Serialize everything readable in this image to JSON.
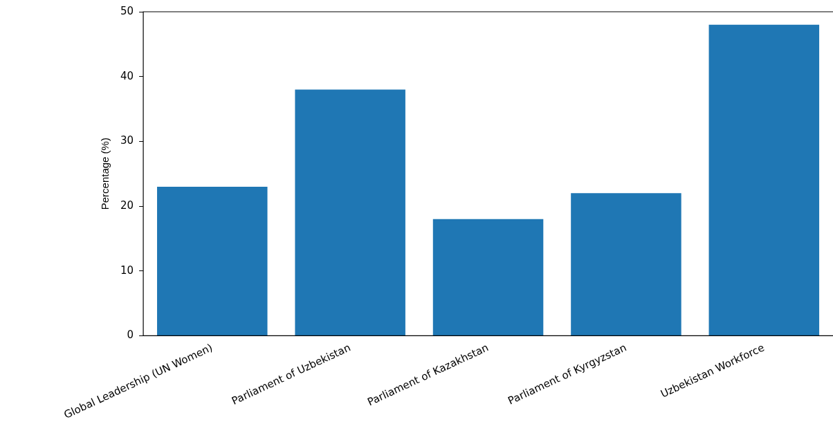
{
  "chart_data": {
    "type": "bar",
    "ylabel": "Percentage (%)",
    "categories": [
      "Global Leadership (UN Women)",
      "Parliament of Uzbekistan",
      "Parliament of Kazakhstan",
      "Parliament of Kyrgyzstan",
      "Uzbekistan Workforce"
    ],
    "values": [
      23,
      38,
      18,
      22,
      48
    ],
    "color": "#1f77b4",
    "ylim": [
      0,
      50
    ],
    "yticks": [
      0,
      10,
      20,
      30,
      40,
      50
    ],
    "grid": false,
    "legend": false
  }
}
